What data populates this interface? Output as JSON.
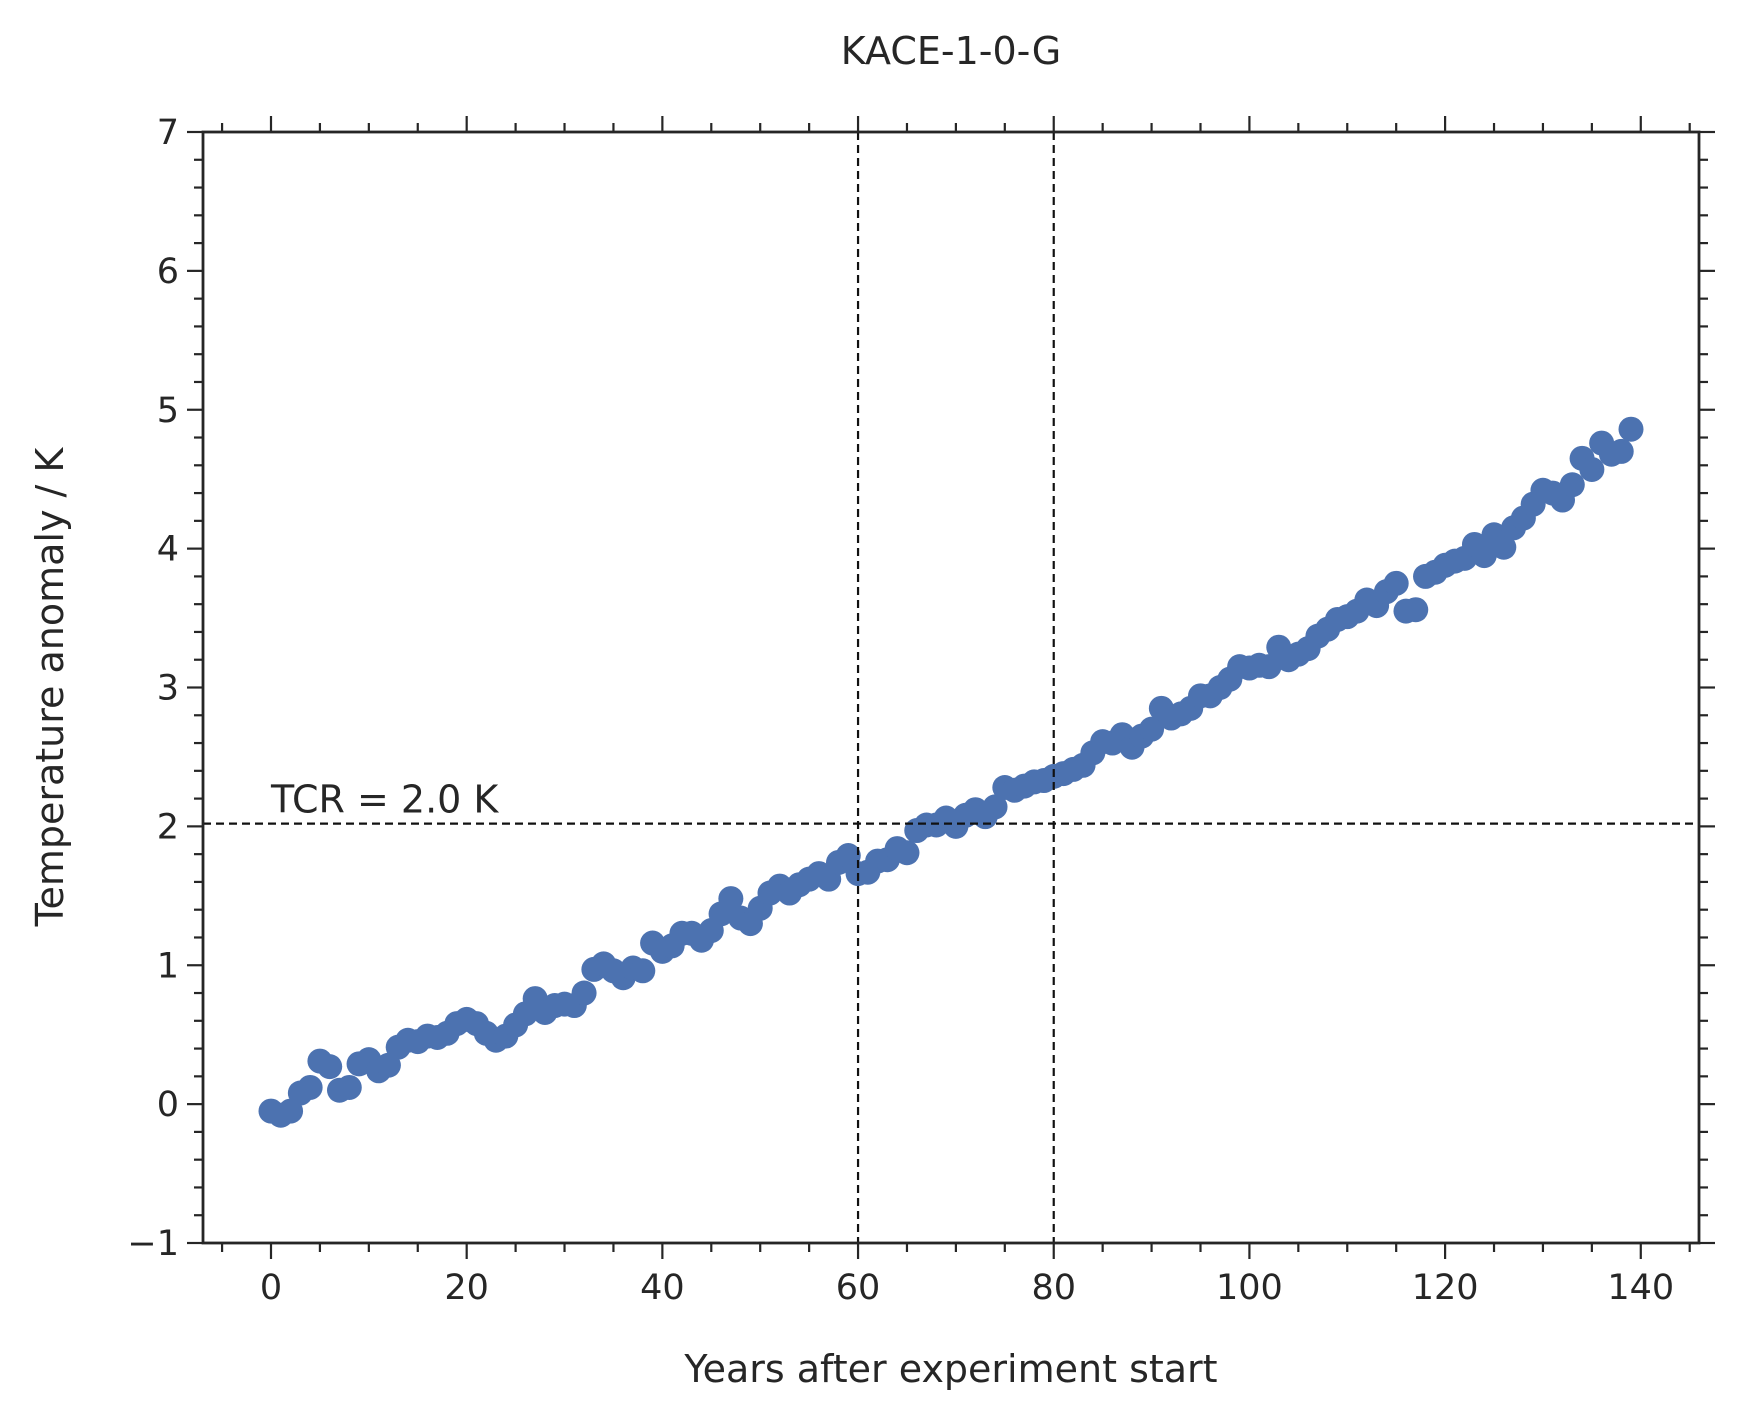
{
  "chart_data": {
    "type": "scatter",
    "title": "KACE-1-0-G",
    "xlabel": "Years after experiment start",
    "ylabel": "Temperature anomaly / K",
    "x": [
      0,
      1,
      2,
      3,
      4,
      5,
      6,
      7,
      8,
      9,
      10,
      11,
      12,
      13,
      14,
      15,
      16,
      17,
      18,
      19,
      20,
      21,
      22,
      23,
      24,
      25,
      26,
      27,
      28,
      29,
      30,
      31,
      32,
      33,
      34,
      35,
      36,
      37,
      38,
      39,
      40,
      41,
      42,
      43,
      44,
      45,
      46,
      47,
      48,
      49,
      50,
      51,
      52,
      53,
      54,
      55,
      56,
      57,
      58,
      59,
      60,
      61,
      62,
      63,
      64,
      65,
      66,
      67,
      68,
      69,
      70,
      71,
      72,
      73,
      74,
      75,
      76,
      77,
      78,
      79,
      80,
      81,
      82,
      83,
      84,
      85,
      86,
      87,
      88,
      89,
      90,
      91,
      92,
      93,
      94,
      95,
      96,
      97,
      98,
      99,
      100,
      101,
      102,
      103,
      104,
      105,
      106,
      107,
      108,
      109,
      110,
      111,
      112,
      113,
      114,
      115,
      116,
      117,
      118,
      119,
      120,
      121,
      122,
      123,
      124,
      125,
      126,
      127,
      128,
      129,
      130,
      131,
      132,
      133,
      134,
      135,
      136,
      137,
      138,
      139
    ],
    "values": [
      -0.05,
      -0.08,
      -0.05,
      0.08,
      0.12,
      0.31,
      0.27,
      0.1,
      0.12,
      0.29,
      0.32,
      0.24,
      0.28,
      0.41,
      0.46,
      0.45,
      0.49,
      0.48,
      0.51,
      0.58,
      0.61,
      0.58,
      0.51,
      0.46,
      0.49,
      0.57,
      0.65,
      0.76,
      0.66,
      0.71,
      0.72,
      0.71,
      0.8,
      0.97,
      1.01,
      0.96,
      0.91,
      0.98,
      0.96,
      1.16,
      1.1,
      1.14,
      1.23,
      1.23,
      1.18,
      1.25,
      1.37,
      1.48,
      1.34,
      1.3,
      1.41,
      1.52,
      1.57,
      1.52,
      1.58,
      1.62,
      1.66,
      1.62,
      1.74,
      1.79,
      1.66,
      1.67,
      1.75,
      1.76,
      1.84,
      1.81,
      1.97,
      2.01,
      2.01,
      2.06,
      2.0,
      2.08,
      2.12,
      2.07,
      2.14,
      2.28,
      2.26,
      2.29,
      2.32,
      2.33,
      2.36,
      2.38,
      2.41,
      2.44,
      2.53,
      2.61,
      2.6,
      2.66,
      2.57,
      2.65,
      2.7,
      2.85,
      2.78,
      2.81,
      2.85,
      2.94,
      2.94,
      3.0,
      3.06,
      3.15,
      3.14,
      3.16,
      3.15,
      3.29,
      3.2,
      3.24,
      3.28,
      3.37,
      3.42,
      3.49,
      3.51,
      3.55,
      3.63,
      3.59,
      3.69,
      3.75,
      3.55,
      3.56,
      3.8,
      3.83,
      3.88,
      3.91,
      3.93,
      4.03,
      3.95,
      4.1,
      4.01,
      4.15,
      4.22,
      4.32,
      4.42,
      4.4,
      4.35,
      4.46,
      4.65,
      4.57,
      4.76,
      4.68,
      4.7,
      4.86
    ],
    "color": "#4c72b0",
    "xlim": [
      -6.95,
      145.95
    ],
    "xticks": [
      0,
      20,
      40,
      60,
      80,
      100,
      120,
      140
    ],
    "xminorticks": [
      -5,
      5,
      10,
      15,
      25,
      30,
      35,
      45,
      50,
      55,
      65,
      70,
      75,
      85,
      90,
      95,
      105,
      110,
      115,
      125,
      130,
      135,
      145
    ],
    "ylim": [
      -1,
      7
    ],
    "yticks": [
      {
        "value": -1,
        "label": "−1"
      },
      0,
      1,
      2,
      3,
      4,
      5,
      6,
      7
    ],
    "yminorticks": [
      -0.8,
      -0.6,
      -0.4,
      -0.2,
      0.2,
      0.4,
      0.6,
      0.8,
      1.2,
      1.4,
      1.6,
      1.8,
      2.2,
      2.4,
      2.6,
      2.8,
      3.2,
      3.4,
      3.6,
      3.8,
      4.2,
      4.4,
      4.6,
      4.8,
      5.2,
      5.4,
      5.6,
      5.8,
      6.2,
      6.4,
      6.6,
      6.8
    ],
    "vlines": [
      60,
      80
    ],
    "hlines": [
      2.02
    ],
    "annotations": [
      {
        "text": "TCR = 2.0 K",
        "x": 0,
        "y": 2.1
      }
    ]
  }
}
